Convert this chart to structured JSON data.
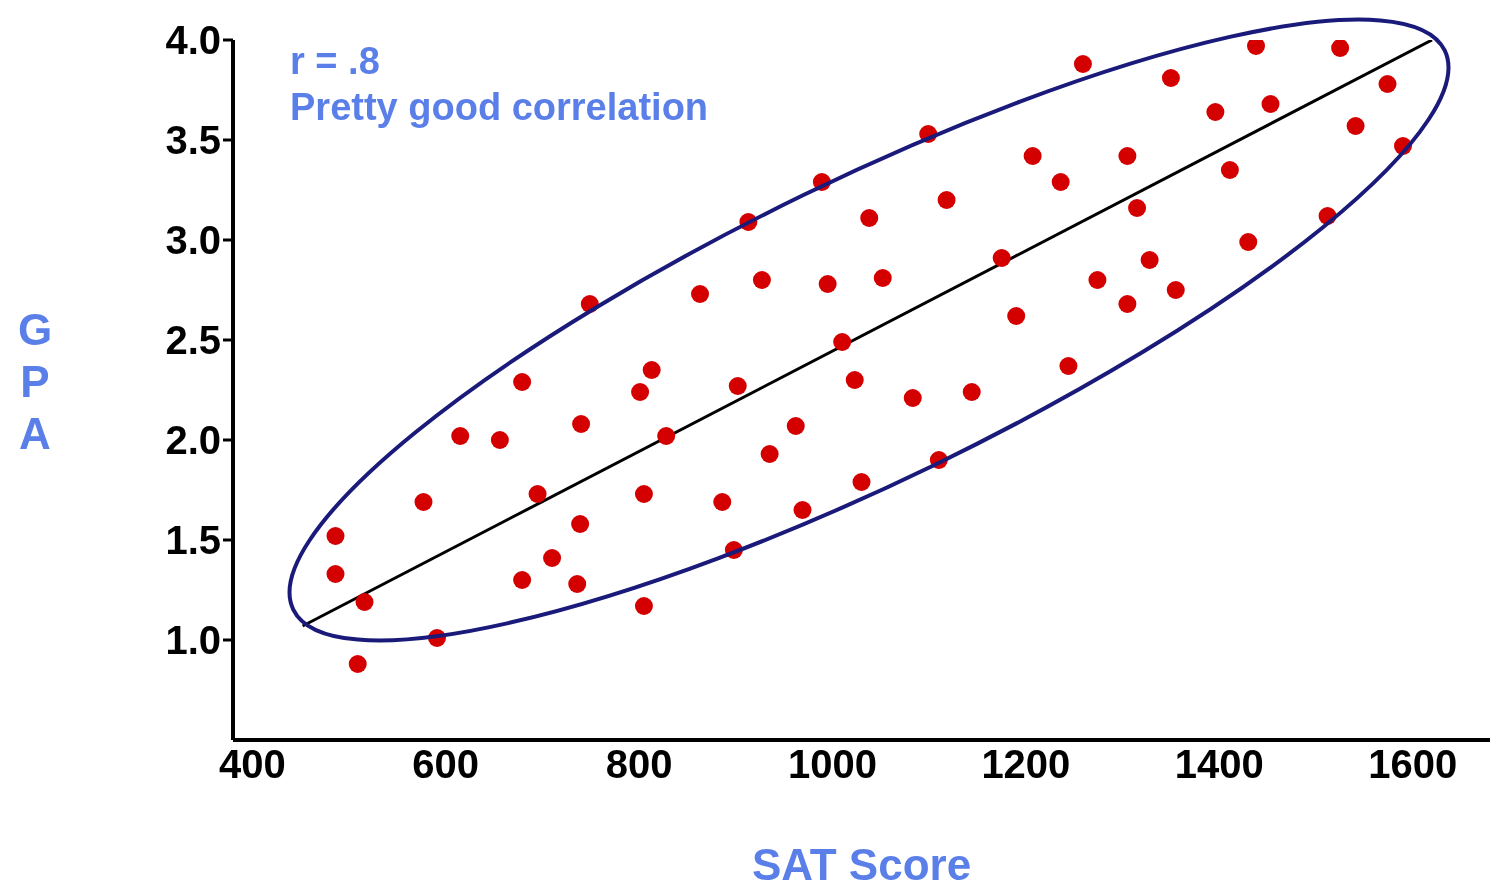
{
  "chart_data": {
    "type": "scatter",
    "xlabel": "SAT Score",
    "ylabel": "GPA",
    "annotations": [
      "r = .8",
      "Pretty good correlation"
    ],
    "xlim": [
      380,
      1680
    ],
    "ylim": [
      0.5,
      4.0
    ],
    "xticks": [
      400,
      600,
      800,
      1000,
      1200,
      1400,
      1600
    ],
    "yticks": [
      {
        "value": 1,
        "label": "1.0"
      },
      1.5,
      {
        "value": 2,
        "label": "2.0"
      },
      2.5,
      {
        "value": 3,
        "label": "3.0"
      },
      3.5,
      {
        "value": 4,
        "label": "4.0"
      }
    ],
    "grid": false,
    "legend": false,
    "marker": "circle",
    "series": [
      {
        "color": "#d40000",
        "x": [
          486,
          486,
          516,
          509,
          577,
          591,
          615,
          656,
          679,
          679,
          695,
          710,
          736,
          739,
          740,
          749,
          801,
          813,
          805,
          805,
          828,
          863,
          886,
          898,
          902,
          913,
          927,
          935,
          962,
          969,
          989,
          995,
          1010,
          1023,
          1030,
          1038,
          1052,
          1083,
          1099,
          1110,
          1118,
          1144,
          1175,
          1190,
          1207,
          1236,
          1244,
          1259,
          1274,
          1305,
          1305,
          1315,
          1328,
          1350,
          1355,
          1396,
          1411,
          1430,
          1438,
          1453,
          1512,
          1525,
          1541,
          1574,
          1590
        ],
        "values": [
          1.52,
          1.33,
          1.19,
          0.88,
          1.69,
          1.01,
          2.02,
          2.0,
          2.29,
          1.3,
          1.73,
          1.41,
          1.28,
          1.58,
          2.08,
          2.68,
          2.24,
          2.35,
          1.73,
          1.17,
          2.02,
          2.73,
          1.69,
          1.45,
          2.27,
          3.09,
          2.8,
          1.93,
          2.07,
          1.65,
          3.29,
          2.78,
          2.49,
          2.3,
          1.79,
          3.11,
          2.81,
          2.21,
          3.53,
          1.9,
          3.2,
          2.24,
          2.91,
          2.62,
          3.42,
          3.29,
          2.37,
          3.88,
          2.8,
          2.68,
          3.42,
          3.16,
          2.9,
          3.81,
          2.75,
          3.64,
          3.35,
          2.99,
          3.97,
          3.68,
          3.12,
          3.96,
          3.57,
          3.78,
          3.47
        ]
      },
      {
        "type": "line",
        "color": "#000000",
        "marker": "none",
        "x": [
          452,
          1620
        ],
        "values": [
          1.07,
          4.0
        ]
      }
    ]
  }
}
